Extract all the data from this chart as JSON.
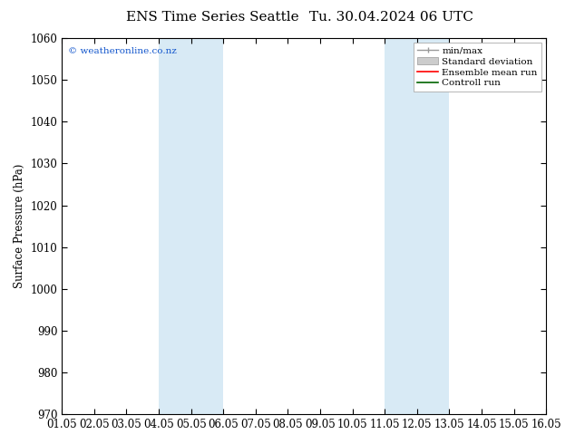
{
  "title_left": "ENS Time Series Seattle",
  "title_right": "Tu. 30.04.2024 06 UTC",
  "ylabel": "Surface Pressure (hPa)",
  "ylim": [
    970,
    1060
  ],
  "yticks": [
    970,
    980,
    990,
    1000,
    1010,
    1020,
    1030,
    1040,
    1050,
    1060
  ],
  "xlim_start": 0,
  "xlim_end": 15,
  "xtick_labels": [
    "01.05",
    "02.05",
    "03.05",
    "04.05",
    "05.05",
    "06.05",
    "07.05",
    "08.05",
    "09.05",
    "10.05",
    "11.05",
    "12.05",
    "13.05",
    "14.05",
    "15.05",
    "16.05"
  ],
  "shaded_bands": [
    {
      "xmin": 3,
      "xmax": 5
    },
    {
      "xmin": 10,
      "xmax": 12
    }
  ],
  "shade_color": "#d8eaf5",
  "watermark": "© weatheronline.co.nz",
  "bg_color": "#ffffff",
  "plot_bg_color": "#ffffff",
  "font_size": 8.5,
  "title_font_size": 11,
  "legend_font_size": 7.5
}
